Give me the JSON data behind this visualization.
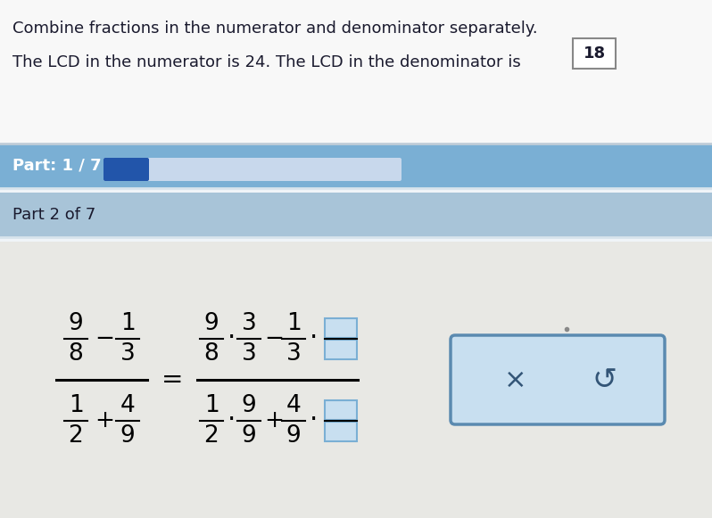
{
  "bg_top": "#f0f4f8",
  "bg_part_bar": "#7aafd4",
  "bg_part2_bar": "#a8c4d8",
  "bg_separator": "#d8e4ec",
  "bg_content": "#e8ecf0",
  "text_dark": "#1a1a2e",
  "text_white": "#ffffff",
  "text_blue": "#3a5a7a",
  "header_text1": "Combine fractions in the numerator and denominator separately.",
  "header_text2": "The LCD in the numerator is 24. The LCD in the denominator is",
  "header_box_val": "18",
  "part_text": "Part: 1 / 7",
  "part2_text": "Part 2 of 7",
  "progress_dark": "#2255aa",
  "progress_light": "#c8d8ec",
  "answer_box_fill": "#c8dff0",
  "answer_box_edge": "#7aafd4",
  "btn_fill": "#b8d0e8",
  "btn_edge": "#7aafd4",
  "btn_outer_fill": "#c8dff0",
  "btn_outer_edge": "#5a8ab0"
}
